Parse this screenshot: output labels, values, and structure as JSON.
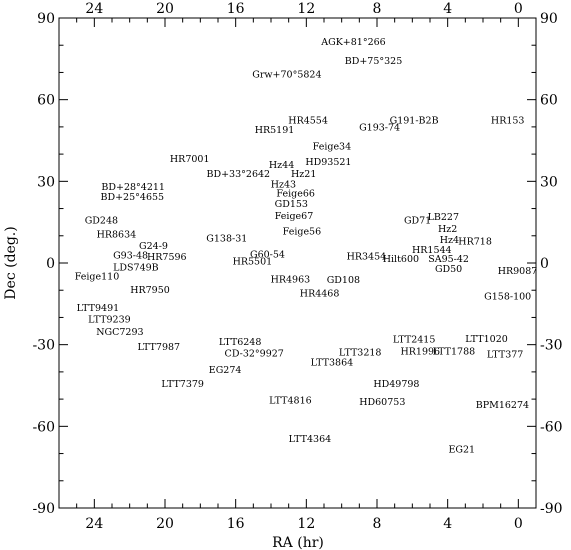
{
  "chart_data": {
    "type": "scatter",
    "xlabel": "RA (hr)",
    "ylabel": "Dec (deg.)",
    "xlim": [
      26,
      -1
    ],
    "ylim": [
      -90,
      90
    ],
    "x_ticks": [
      24,
      20,
      16,
      12,
      8,
      4,
      0
    ],
    "y_ticks": [
      90,
      60,
      30,
      0,
      -30,
      -60,
      -90
    ],
    "points": [
      {
        "name": "AGK+81°266",
        "x": 9.33,
        "y": 81.4
      },
      {
        "name": "BD+75°325",
        "x": 8.2,
        "y": 74.3
      },
      {
        "name": "Grw+70°5824",
        "x": 13.1,
        "y": 69.4
      },
      {
        "name": "HR4554",
        "x": 11.9,
        "y": 52.6
      },
      {
        "name": "G191-B2B",
        "x": 5.9,
        "y": 52.6
      },
      {
        "name": "HR153",
        "x": 0.6,
        "y": 52.6
      },
      {
        "name": "HR5191",
        "x": 13.8,
        "y": 49.0
      },
      {
        "name": "G193-74",
        "x": 7.85,
        "y": 50.0
      },
      {
        "name": "Feige34",
        "x": 10.55,
        "y": 43.0
      },
      {
        "name": "HR7001",
        "x": 18.6,
        "y": 38.4
      },
      {
        "name": "HD93521",
        "x": 10.75,
        "y": 37.3
      },
      {
        "name": "Hz44",
        "x": 13.4,
        "y": 36.1
      },
      {
        "name": "BD+33°2642",
        "x": 15.85,
        "y": 32.9
      },
      {
        "name": "Hz21",
        "x": 12.15,
        "y": 32.9
      },
      {
        "name": "Hz43",
        "x": 13.3,
        "y": 29.1
      },
      {
        "name": "BD+28°4211",
        "x": 21.8,
        "y": 28.1
      },
      {
        "name": "Feige66",
        "x": 12.6,
        "y": 25.8
      },
      {
        "name": "BD+25°4655",
        "x": 21.85,
        "y": 24.4
      },
      {
        "name": "GD153",
        "x": 12.85,
        "y": 21.8
      },
      {
        "name": "Feige67",
        "x": 12.7,
        "y": 17.4
      },
      {
        "name": "GD71",
        "x": 5.7,
        "y": 15.8
      },
      {
        "name": "LB227",
        "x": 4.25,
        "y": 17.1
      },
      {
        "name": "GD248",
        "x": 23.6,
        "y": 15.8
      },
      {
        "name": "Hz2",
        "x": 4.0,
        "y": 12.6
      },
      {
        "name": "HR8634",
        "x": 22.75,
        "y": 10.6
      },
      {
        "name": "Feige56",
        "x": 12.25,
        "y": 11.8
      },
      {
        "name": "Hz4",
        "x": 3.9,
        "y": 8.6
      },
      {
        "name": "HR718",
        "x": 2.45,
        "y": 8.1
      },
      {
        "name": "G138-31",
        "x": 16.5,
        "y": 9.1
      },
      {
        "name": "G24-9",
        "x": 20.65,
        "y": 6.4
      },
      {
        "name": "HR1544",
        "x": 4.9,
        "y": 5.0
      },
      {
        "name": "G93-48",
        "x": 21.95,
        "y": 3.0
      },
      {
        "name": "HR7596",
        "x": 19.9,
        "y": 2.4
      },
      {
        "name": "G60-54",
        "x": 14.2,
        "y": 3.3
      },
      {
        "name": "HR3454",
        "x": 8.6,
        "y": 2.6
      },
      {
        "name": "Hilt600",
        "x": 6.65,
        "y": 1.7
      },
      {
        "name": "SA95-42",
        "x": 3.95,
        "y": 1.7
      },
      {
        "name": "HR5501",
        "x": 15.05,
        "y": 0.8
      },
      {
        "name": "LDS749B",
        "x": 21.65,
        "y": -1.5
      },
      {
        "name": "GD50",
        "x": 3.95,
        "y": -2.1
      },
      {
        "name": "HR9087",
        "x": 0.05,
        "y": -2.8
      },
      {
        "name": "Feige110",
        "x": 23.85,
        "y": -4.8
      },
      {
        "name": "HR4963",
        "x": 12.9,
        "y": -5.8
      },
      {
        "name": "GD108",
        "x": 9.9,
        "y": -6.1
      },
      {
        "name": "HR7950",
        "x": 20.85,
        "y": -9.7
      },
      {
        "name": "HR4468",
        "x": 11.25,
        "y": -11.0
      },
      {
        "name": "G158-100",
        "x": 0.6,
        "y": -12.1
      },
      {
        "name": "LTT9491",
        "x": 23.8,
        "y": -16.4
      },
      {
        "name": "LTT9239",
        "x": 23.15,
        "y": -20.6
      },
      {
        "name": "NGC7293",
        "x": 22.55,
        "y": -25.1
      },
      {
        "name": "LTT6248",
        "x": 15.75,
        "y": -28.8
      },
      {
        "name": "LTT2415",
        "x": 5.9,
        "y": -27.9
      },
      {
        "name": "LTT1020",
        "x": 1.8,
        "y": -27.8
      },
      {
        "name": "LTT7987",
        "x": 20.35,
        "y": -30.6
      },
      {
        "name": "HR1996",
        "x": 5.55,
        "y": -32.4
      },
      {
        "name": "LTT1788",
        "x": 3.65,
        "y": -32.4
      },
      {
        "name": "CD-32°9927",
        "x": 14.95,
        "y": -33.1
      },
      {
        "name": "LTT3218",
        "x": 8.95,
        "y": -32.7
      },
      {
        "name": "LTT377",
        "x": 0.75,
        "y": -33.5
      },
      {
        "name": "LTT3864",
        "x": 10.55,
        "y": -36.4
      },
      {
        "name": "EG274",
        "x": 16.6,
        "y": -39.2
      },
      {
        "name": "LTT7379",
        "x": 19.0,
        "y": -44.3
      },
      {
        "name": "HD49798",
        "x": 6.9,
        "y": -44.3
      },
      {
        "name": "LTT4816",
        "x": 12.9,
        "y": -50.4
      },
      {
        "name": "HD60753",
        "x": 7.7,
        "y": -50.9
      },
      {
        "name": "BPM16274",
        "x": 0.9,
        "y": -52.0
      },
      {
        "name": "LTT4364",
        "x": 11.8,
        "y": -64.5
      },
      {
        "name": "EG21",
        "x": 3.2,
        "y": -68.4
      }
    ]
  }
}
